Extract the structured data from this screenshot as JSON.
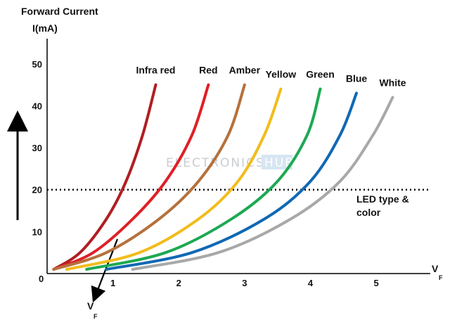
{
  "chart_data": {
    "type": "line",
    "title": "",
    "ylabel_line1": "Forward Current",
    "ylabel_line2": "I(mA)",
    "xlabel_main": "V",
    "xlabel_sub": "F",
    "origin_label": "0",
    "xlim": [
      0,
      5.8
    ],
    "ylim": [
      0,
      56
    ],
    "x_ticks": [
      1,
      2,
      3,
      4,
      5
    ],
    "x_tick_labels": [
      "1",
      "2",
      "3",
      "4",
      "5"
    ],
    "y_ticks": [
      10,
      20,
      30,
      40,
      50
    ],
    "y_tick_labels": [
      "10",
      "20",
      "30",
      "40",
      "50"
    ],
    "reference_line": {
      "y": 20,
      "style": "dotted"
    },
    "annotation_lines": [
      "LED type &",
      "color"
    ],
    "series": [
      {
        "name": "Infra red",
        "color": "#b01e22",
        "x": [
          0.1,
          0.5,
          0.9,
          1.2,
          1.45,
          1.65
        ],
        "y": [
          1,
          5,
          13,
          22,
          33,
          45
        ]
      },
      {
        "name": "Red",
        "color": "#e01f26",
        "x": [
          0.1,
          0.7,
          1.3,
          1.8,
          2.2,
          2.45
        ],
        "y": [
          1,
          5,
          13,
          22,
          33,
          45
        ]
      },
      {
        "name": "Amber",
        "color": "#b5713c",
        "x": [
          0.1,
          0.9,
          1.7,
          2.3,
          2.75,
          3.0
        ],
        "y": [
          1,
          5,
          13,
          22,
          33,
          45
        ]
      },
      {
        "name": "Yellow",
        "color": "#f2bc1c",
        "x": [
          0.3,
          1.4,
          2.3,
          2.9,
          3.3,
          3.55
        ],
        "y": [
          1,
          5,
          13,
          22,
          33,
          44
        ]
      },
      {
        "name": "Green",
        "color": "#1ca952",
        "x": [
          0.6,
          1.8,
          2.8,
          3.5,
          3.95,
          4.15
        ],
        "y": [
          1,
          5,
          13,
          22,
          33,
          44
        ]
      },
      {
        "name": "Blue",
        "color": "#1068b4",
        "x": [
          0.9,
          2.2,
          3.3,
          4.0,
          4.45,
          4.7
        ],
        "y": [
          1,
          5,
          13,
          22,
          33,
          43
        ]
      },
      {
        "name": "White",
        "color": "#a8a8a8",
        "x": [
          1.3,
          2.6,
          3.7,
          4.45,
          4.95,
          5.25
        ],
        "y": [
          1,
          5,
          13,
          22,
          33,
          42
        ]
      }
    ]
  },
  "watermark": {
    "part1": "ELECTRONICS",
    "part2": "HUB"
  }
}
